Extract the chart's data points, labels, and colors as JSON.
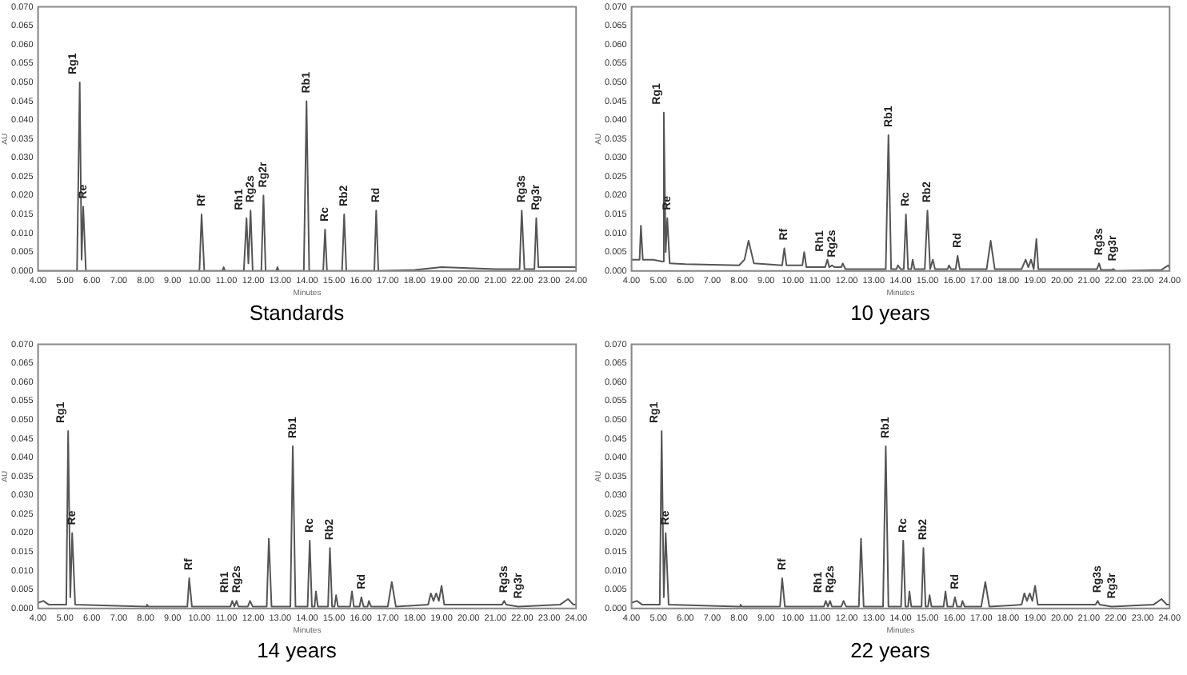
{
  "chart_data": [
    {
      "type": "line",
      "title": "Standards",
      "xlabel": "Minutes",
      "ylabel": "AU",
      "color": "#555555",
      "legend": false,
      "grid": false,
      "x": [
        4.0,
        5.45,
        5.55,
        5.62,
        5.68,
        5.78,
        10.0,
        10.08,
        10.18,
        10.85,
        10.9,
        10.95,
        11.65,
        11.75,
        11.82,
        11.9,
        11.98,
        12.3,
        12.38,
        12.46,
        12.85,
        12.9,
        12.95,
        13.88,
        13.98,
        14.08,
        14.6,
        14.67,
        14.74,
        15.3,
        15.38,
        15.46,
        16.5,
        16.57,
        16.65,
        18.0,
        19.0,
        21.0,
        21.9,
        21.98,
        22.08,
        22.45,
        22.52,
        22.6,
        24.0
      ],
      "values": [
        0,
        0,
        0.05,
        0.003,
        0.017,
        0,
        0,
        0.015,
        0,
        0,
        0.001,
        0,
        0,
        0.014,
        0.002,
        0.016,
        0,
        0,
        0.02,
        0,
        0,
        0.001,
        0,
        0,
        0.045,
        0,
        0,
        0.011,
        0,
        0,
        0.015,
        0,
        0,
        0.016,
        0,
        0.0003,
        0.001,
        0.0005,
        0.0005,
        0.016,
        0.0005,
        0.0005,
        0.014,
        0.001,
        0.001
      ],
      "annotations": [
        {
          "text": "Rg1",
          "x": 5.55,
          "y": 0.05
        },
        {
          "text": "Re",
          "x": 5.68,
          "y": 0.017
        },
        {
          "text": "Rf",
          "x": 10.08,
          "y": 0.015
        },
        {
          "text": "Rh1",
          "x": 11.75,
          "y": 0.014
        },
        {
          "text": "Rg2s",
          "x": 11.9,
          "y": 0.016
        },
        {
          "text": "Rg2r",
          "x": 12.38,
          "y": 0.02
        },
        {
          "text": "Rb1",
          "x": 13.98,
          "y": 0.045
        },
        {
          "text": "Rc",
          "x": 14.67,
          "y": 0.011
        },
        {
          "text": "Rb2",
          "x": 15.38,
          "y": 0.015
        },
        {
          "text": "Rd",
          "x": 16.57,
          "y": 0.016
        },
        {
          "text": "Rg3s",
          "x": 21.98,
          "y": 0.016
        },
        {
          "text": "Rg3r",
          "x": 22.52,
          "y": 0.014
        }
      ],
      "xlim": [
        4,
        24
      ],
      "ylim": [
        0,
        0.07
      ],
      "xticks": [
        {
          "value": 4,
          "label": "4.00"
        },
        {
          "value": 5,
          "label": "5.00"
        },
        {
          "value": 6,
          "label": "6.00"
        },
        {
          "value": 7,
          "label": "7.00"
        },
        {
          "value": 8,
          "label": "8.00"
        },
        {
          "value": 9,
          "label": "9.00"
        },
        {
          "value": 10,
          "label": "10.00"
        },
        {
          "value": 11,
          "label": "11.00"
        },
        {
          "value": 12,
          "label": "12.00"
        },
        {
          "value": 13,
          "label": "13.00"
        },
        {
          "value": 14,
          "label": "14.00"
        },
        {
          "value": 15,
          "label": "15.00"
        },
        {
          "value": 16,
          "label": "16.00"
        },
        {
          "value": 17,
          "label": "17.00"
        },
        {
          "value": 18,
          "label": "18.00"
        },
        {
          "value": 19,
          "label": "19.00"
        },
        {
          "value": 20,
          "label": "20.00"
        },
        {
          "value": 21,
          "label": "21.00"
        },
        {
          "value": 22,
          "label": "22.00"
        },
        {
          "value": 23,
          "label": "23.00"
        },
        {
          "value": 24,
          "label": "24.00"
        }
      ],
      "yticks": [
        {
          "value": 0,
          "label": "0.000"
        },
        {
          "value": 0.005,
          "label": "0.005"
        },
        {
          "value": 0.01,
          "label": "0.010"
        },
        {
          "value": 0.015,
          "label": "0.015"
        },
        {
          "value": 0.02,
          "label": "0.020"
        },
        {
          "value": 0.025,
          "label": "0.025"
        },
        {
          "value": 0.03,
          "label": "0.030"
        },
        {
          "value": 0.035,
          "label": "0.035"
        },
        {
          "value": 0.04,
          "label": "0.040"
        },
        {
          "value": 0.045,
          "label": "0.045"
        },
        {
          "value": 0.05,
          "label": "0.050"
        },
        {
          "value": 0.055,
          "label": "0.055"
        },
        {
          "value": 0.06,
          "label": "0.060"
        },
        {
          "value": 0.065,
          "label": "0.065"
        },
        {
          "value": 0.07,
          "label": "0.070"
        }
      ]
    },
    {
      "type": "line",
      "title": "10 years",
      "xlabel": "Minutes",
      "ylabel": "AU",
      "color": "#555555",
      "legend": false,
      "grid": false,
      "x": [
        4.0,
        4.3,
        4.35,
        4.42,
        4.8,
        5.15,
        5.2,
        5.27,
        5.33,
        5.42,
        6.0,
        8.0,
        8.2,
        8.35,
        8.55,
        9.6,
        9.68,
        9.76,
        10.35,
        10.42,
        10.5,
        11.2,
        11.28,
        11.35,
        11.45,
        11.55,
        11.8,
        11.85,
        11.95,
        13.45,
        13.55,
        13.65,
        13.85,
        13.9,
        14.0,
        14.12,
        14.2,
        14.28,
        14.4,
        14.45,
        14.52,
        14.9,
        15.0,
        15.1,
        15.2,
        15.28,
        15.75,
        15.8,
        15.88,
        16.05,
        16.12,
        16.2,
        17.2,
        17.35,
        17.5,
        18.5,
        18.65,
        18.75,
        18.85,
        18.95,
        19.05,
        19.12,
        21.3,
        21.38,
        21.45,
        21.85,
        21.9,
        22.0,
        23.7,
        23.95,
        24.0
      ],
      "values": [
        0.003,
        0.003,
        0.012,
        0.003,
        0.003,
        0.0025,
        0.042,
        0.005,
        0.014,
        0.002,
        0.0018,
        0.0015,
        0.003,
        0.008,
        0.002,
        0.0015,
        0.006,
        0.0015,
        0.0015,
        0.005,
        0.001,
        0.001,
        0.003,
        0.001,
        0.0015,
        0.001,
        0.001,
        0.002,
        0.0005,
        0.0005,
        0.036,
        0.0005,
        0.0005,
        0.0015,
        0.0005,
        0.0005,
        0.015,
        0.0005,
        0.0005,
        0.003,
        0.0005,
        0.0005,
        0.016,
        0.0005,
        0.003,
        0.0005,
        0.0005,
        0.0015,
        0.0005,
        0.0005,
        0.004,
        0.0005,
        0.0005,
        0.008,
        0.0005,
        0.0005,
        0.003,
        0.001,
        0.003,
        0.0005,
        0.0085,
        0.0005,
        0.0005,
        0.002,
        0.0003,
        0.0003,
        0.0005,
        0,
        0.0003,
        0.0015,
        0.0008
      ],
      "annotations": [
        {
          "text": "Rg1",
          "x": 5.2,
          "y": 0.042
        },
        {
          "text": "Re",
          "x": 5.33,
          "y": 0.014
        },
        {
          "text": "Rf",
          "x": 9.68,
          "y": 0.006
        },
        {
          "text": "Rh1",
          "x": 11.28,
          "y": 0.003
        },
        {
          "text": "Rg2s",
          "x": 11.45,
          "y": 0.0015
        },
        {
          "text": "Rb1",
          "x": 13.55,
          "y": 0.036
        },
        {
          "text": "Rc",
          "x": 14.2,
          "y": 0.015
        },
        {
          "text": "Rb2",
          "x": 15.0,
          "y": 0.016
        },
        {
          "text": "Rd",
          "x": 16.12,
          "y": 0.004
        },
        {
          "text": "Rg3s",
          "x": 21.38,
          "y": 0.002
        },
        {
          "text": "Rg3r",
          "x": 21.9,
          "y": 0.0005
        }
      ],
      "xlim": [
        4,
        24
      ],
      "ylim": [
        0,
        0.07
      ],
      "xticks": [
        {
          "value": 4,
          "label": "4.00"
        },
        {
          "value": 5,
          "label": "5.00"
        },
        {
          "value": 6,
          "label": "6.00"
        },
        {
          "value": 7,
          "label": "7.00"
        },
        {
          "value": 8,
          "label": "8.00"
        },
        {
          "value": 9,
          "label": "9.00"
        },
        {
          "value": 10,
          "label": "10.00"
        },
        {
          "value": 11,
          "label": "11.00"
        },
        {
          "value": 12,
          "label": "12.00"
        },
        {
          "value": 13,
          "label": "13.00"
        },
        {
          "value": 14,
          "label": "14.00"
        },
        {
          "value": 15,
          "label": "15.00"
        },
        {
          "value": 16,
          "label": "16.00"
        },
        {
          "value": 17,
          "label": "17.00"
        },
        {
          "value": 18,
          "label": "18.00"
        },
        {
          "value": 19,
          "label": "19.00"
        },
        {
          "value": 20,
          "label": "20.00"
        },
        {
          "value": 21,
          "label": "21.00"
        },
        {
          "value": 22,
          "label": "22.00"
        },
        {
          "value": 23,
          "label": "23.00"
        },
        {
          "value": 24,
          "label": "24.00"
        }
      ],
      "yticks": [
        {
          "value": 0,
          "label": "0.000"
        },
        {
          "value": 0.005,
          "label": "0.005"
        },
        {
          "value": 0.01,
          "label": "0.010"
        },
        {
          "value": 0.015,
          "label": "0.015"
        },
        {
          "value": 0.02,
          "label": "0.020"
        },
        {
          "value": 0.025,
          "label": "0.025"
        },
        {
          "value": 0.03,
          "label": "0.030"
        },
        {
          "value": 0.035,
          "label": "0.035"
        },
        {
          "value": 0.04,
          "label": "0.040"
        },
        {
          "value": 0.045,
          "label": "0.045"
        },
        {
          "value": 0.05,
          "label": "0.050"
        },
        {
          "value": 0.055,
          "label": "0.055"
        },
        {
          "value": 0.06,
          "label": "0.060"
        },
        {
          "value": 0.065,
          "label": "0.065"
        },
        {
          "value": 0.07,
          "label": "0.070"
        }
      ]
    },
    {
      "type": "line",
      "title": "14 years",
      "xlabel": "Minutes",
      "ylabel": "AU",
      "color": "#555555",
      "legend": false,
      "grid": false,
      "x": [
        4.0,
        4.2,
        4.4,
        5.05,
        5.12,
        5.2,
        5.27,
        5.38,
        8.0,
        8.05,
        8.1,
        9.55,
        9.62,
        9.72,
        11.15,
        11.22,
        11.3,
        11.38,
        11.45,
        11.8,
        11.88,
        11.98,
        12.5,
        12.58,
        12.68,
        13.38,
        13.47,
        13.57,
        14.02,
        14.1,
        14.18,
        14.28,
        14.33,
        14.4,
        14.78,
        14.85,
        14.93,
        15.02,
        15.08,
        15.15,
        15.6,
        15.67,
        15.74,
        15.95,
        16.02,
        16.1,
        16.25,
        16.3,
        16.38,
        17.0,
        17.15,
        17.3,
        18.5,
        18.6,
        18.7,
        18.8,
        18.9,
        19.0,
        19.1,
        21.25,
        21.33,
        21.4,
        21.85,
        23.4,
        23.7,
        23.9,
        24.0
      ],
      "values": [
        0.0015,
        0.002,
        0.001,
        0.001,
        0.047,
        0.003,
        0.02,
        0.001,
        0.0005,
        0.001,
        0.0005,
        0.0005,
        0.008,
        0.0005,
        0.0005,
        0.002,
        0.0005,
        0.002,
        0.0005,
        0.0005,
        0.002,
        0.0005,
        0.0005,
        0.0185,
        0.0005,
        0.0005,
        0.043,
        0.0005,
        0.0005,
        0.018,
        0.0005,
        0.0005,
        0.0045,
        0.0005,
        0.0005,
        0.016,
        0.0005,
        0.0005,
        0.0035,
        0.0005,
        0.0005,
        0.0045,
        0.0005,
        0.0005,
        0.003,
        0.0005,
        0.0005,
        0.002,
        0.0005,
        0.0005,
        0.007,
        0.0005,
        0.001,
        0.004,
        0.002,
        0.004,
        0.002,
        0.006,
        0.001,
        0.001,
        0.002,
        0.001,
        0.0005,
        0.001,
        0.0025,
        0.001,
        0.001
      ],
      "annotations": [
        {
          "text": "Rg1",
          "x": 5.12,
          "y": 0.047
        },
        {
          "text": "Re",
          "x": 5.27,
          "y": 0.02
        },
        {
          "text": "Rf",
          "x": 9.62,
          "y": 0.008
        },
        {
          "text": "Rh1",
          "x": 11.22,
          "y": 0.002
        },
        {
          "text": "Rg2s",
          "x": 11.38,
          "y": 0.002
        },
        {
          "text": "Rb1",
          "x": 13.47,
          "y": 0.043
        },
        {
          "text": "Rc",
          "x": 14.1,
          "y": 0.018
        },
        {
          "text": "Rb2",
          "x": 14.85,
          "y": 0.016
        },
        {
          "text": "Rd",
          "x": 16.02,
          "y": 0.003
        },
        {
          "text": "Rg3s",
          "x": 21.33,
          "y": 0.002
        },
        {
          "text": "Rg3r",
          "x": 21.85,
          "y": 0.0005
        }
      ],
      "xlim": [
        4,
        24
      ],
      "ylim": [
        0,
        0.07
      ],
      "xticks": [
        {
          "value": 4,
          "label": "4.00"
        },
        {
          "value": 5,
          "label": "5.00"
        },
        {
          "value": 6,
          "label": "6.00"
        },
        {
          "value": 7,
          "label": "7.00"
        },
        {
          "value": 8,
          "label": "8.00"
        },
        {
          "value": 9,
          "label": "9.00"
        },
        {
          "value": 10,
          "label": "10.00"
        },
        {
          "value": 11,
          "label": "11.00"
        },
        {
          "value": 12,
          "label": "12.00"
        },
        {
          "value": 13,
          "label": "13.00"
        },
        {
          "value": 14,
          "label": "14.00"
        },
        {
          "value": 15,
          "label": "15.00"
        },
        {
          "value": 16,
          "label": "16.00"
        },
        {
          "value": 17,
          "label": "17.00"
        },
        {
          "value": 18,
          "label": "18.00"
        },
        {
          "value": 19,
          "label": "19.00"
        },
        {
          "value": 20,
          "label": "20.00"
        },
        {
          "value": 21,
          "label": "21.00"
        },
        {
          "value": 22,
          "label": "22.00"
        },
        {
          "value": 23,
          "label": "23.00"
        },
        {
          "value": 24,
          "label": "24.00"
        }
      ],
      "yticks": [
        {
          "value": 0,
          "label": "0.000"
        },
        {
          "value": 0.005,
          "label": "0.005"
        },
        {
          "value": 0.01,
          "label": "0.010"
        },
        {
          "value": 0.015,
          "label": "0.015"
        },
        {
          "value": 0.02,
          "label": "0.020"
        },
        {
          "value": 0.025,
          "label": "0.025"
        },
        {
          "value": 0.03,
          "label": "0.030"
        },
        {
          "value": 0.035,
          "label": "0.035"
        },
        {
          "value": 0.04,
          "label": "0.040"
        },
        {
          "value": 0.045,
          "label": "0.045"
        },
        {
          "value": 0.05,
          "label": "0.050"
        },
        {
          "value": 0.055,
          "label": "0.055"
        },
        {
          "value": 0.06,
          "label": "0.060"
        },
        {
          "value": 0.065,
          "label": "0.065"
        },
        {
          "value": 0.07,
          "label": "0.070"
        }
      ]
    },
    {
      "type": "line",
      "title": "22 years",
      "xlabel": "Minutes",
      "ylabel": "AU",
      "color": "#555555",
      "legend": false,
      "grid": false,
      "x": [
        4.0,
        4.2,
        4.4,
        5.05,
        5.12,
        5.2,
        5.27,
        5.38,
        8.0,
        8.05,
        8.1,
        9.52,
        9.6,
        9.7,
        11.15,
        11.22,
        11.3,
        11.38,
        11.45,
        11.8,
        11.88,
        11.98,
        12.45,
        12.53,
        12.63,
        13.35,
        13.45,
        13.55,
        14.02,
        14.1,
        14.18,
        14.28,
        14.33,
        14.4,
        14.78,
        14.85,
        14.93,
        15.02,
        15.08,
        15.15,
        15.6,
        15.67,
        15.74,
        15.95,
        16.02,
        16.1,
        16.25,
        16.3,
        16.38,
        17.0,
        17.15,
        17.3,
        18.5,
        18.6,
        18.7,
        18.8,
        18.9,
        19.0,
        19.1,
        21.25,
        21.33,
        21.4,
        21.85,
        23.4,
        23.7,
        23.9,
        24.0
      ],
      "values": [
        0.0015,
        0.002,
        0.001,
        0.001,
        0.047,
        0.003,
        0.02,
        0.001,
        0.0005,
        0.001,
        0.0005,
        0.0005,
        0.008,
        0.0005,
        0.0005,
        0.002,
        0.0005,
        0.002,
        0.0005,
        0.0005,
        0.002,
        0.0005,
        0.0005,
        0.0185,
        0.0005,
        0.0005,
        0.043,
        0.0005,
        0.0005,
        0.018,
        0.0005,
        0.0005,
        0.0045,
        0.0005,
        0.0005,
        0.016,
        0.0005,
        0.0005,
        0.0035,
        0.0005,
        0.0005,
        0.0045,
        0.0005,
        0.0005,
        0.003,
        0.0005,
        0.0005,
        0.002,
        0.0005,
        0.0005,
        0.007,
        0.0005,
        0.001,
        0.004,
        0.002,
        0.004,
        0.002,
        0.006,
        0.001,
        0.001,
        0.002,
        0.001,
        0.0005,
        0.001,
        0.0025,
        0.001,
        0.001
      ],
      "annotations": [
        {
          "text": "Rg1",
          "x": 5.12,
          "y": 0.047
        },
        {
          "text": "Re",
          "x": 5.27,
          "y": 0.02
        },
        {
          "text": "Rf",
          "x": 9.6,
          "y": 0.008
        },
        {
          "text": "Rh1",
          "x": 11.22,
          "y": 0.002
        },
        {
          "text": "Rg2s",
          "x": 11.38,
          "y": 0.002
        },
        {
          "text": "Rb1",
          "x": 13.45,
          "y": 0.043
        },
        {
          "text": "Rc",
          "x": 14.1,
          "y": 0.018
        },
        {
          "text": "Rb2",
          "x": 14.85,
          "y": 0.016
        },
        {
          "text": "Rd",
          "x": 16.02,
          "y": 0.003
        },
        {
          "text": "Rg3s",
          "x": 21.33,
          "y": 0.002
        },
        {
          "text": "Rg3r",
          "x": 21.85,
          "y": 0.0005
        }
      ],
      "xlim": [
        4,
        24
      ],
      "ylim": [
        0,
        0.07
      ],
      "xticks": [
        {
          "value": 4,
          "label": "4.00"
        },
        {
          "value": 5,
          "label": "5.00"
        },
        {
          "value": 6,
          "label": "6.00"
        },
        {
          "value": 7,
          "label": "7.00"
        },
        {
          "value": 8,
          "label": "8.00"
        },
        {
          "value": 9,
          "label": "9.00"
        },
        {
          "value": 10,
          "label": "10.00"
        },
        {
          "value": 11,
          "label": "11.00"
        },
        {
          "value": 12,
          "label": "12.00"
        },
        {
          "value": 13,
          "label": "13.00"
        },
        {
          "value": 14,
          "label": "14.00"
        },
        {
          "value": 15,
          "label": "15.00"
        },
        {
          "value": 16,
          "label": "16.00"
        },
        {
          "value": 17,
          "label": "17.00"
        },
        {
          "value": 18,
          "label": "18.00"
        },
        {
          "value": 19,
          "label": "19.00"
        },
        {
          "value": 20,
          "label": "20.00"
        },
        {
          "value": 21,
          "label": "21.00"
        },
        {
          "value": 22,
          "label": "22.00"
        },
        {
          "value": 23,
          "label": "23.00"
        },
        {
          "value": 24,
          "label": "24.00"
        }
      ],
      "yticks": [
        {
          "value": 0,
          "label": "0.000"
        },
        {
          "value": 0.005,
          "label": "0.005"
        },
        {
          "value": 0.01,
          "label": "0.010"
        },
        {
          "value": 0.015,
          "label": "0.015"
        },
        {
          "value": 0.02,
          "label": "0.020"
        },
        {
          "value": 0.025,
          "label": "0.025"
        },
        {
          "value": 0.03,
          "label": "0.030"
        },
        {
          "value": 0.035,
          "label": "0.035"
        },
        {
          "value": 0.04,
          "label": "0.040"
        },
        {
          "value": 0.045,
          "label": "0.045"
        },
        {
          "value": 0.05,
          "label": "0.050"
        },
        {
          "value": 0.055,
          "label": "0.055"
        },
        {
          "value": 0.06,
          "label": "0.060"
        },
        {
          "value": 0.065,
          "label": "0.065"
        },
        {
          "value": 0.07,
          "label": "0.070"
        }
      ]
    }
  ]
}
